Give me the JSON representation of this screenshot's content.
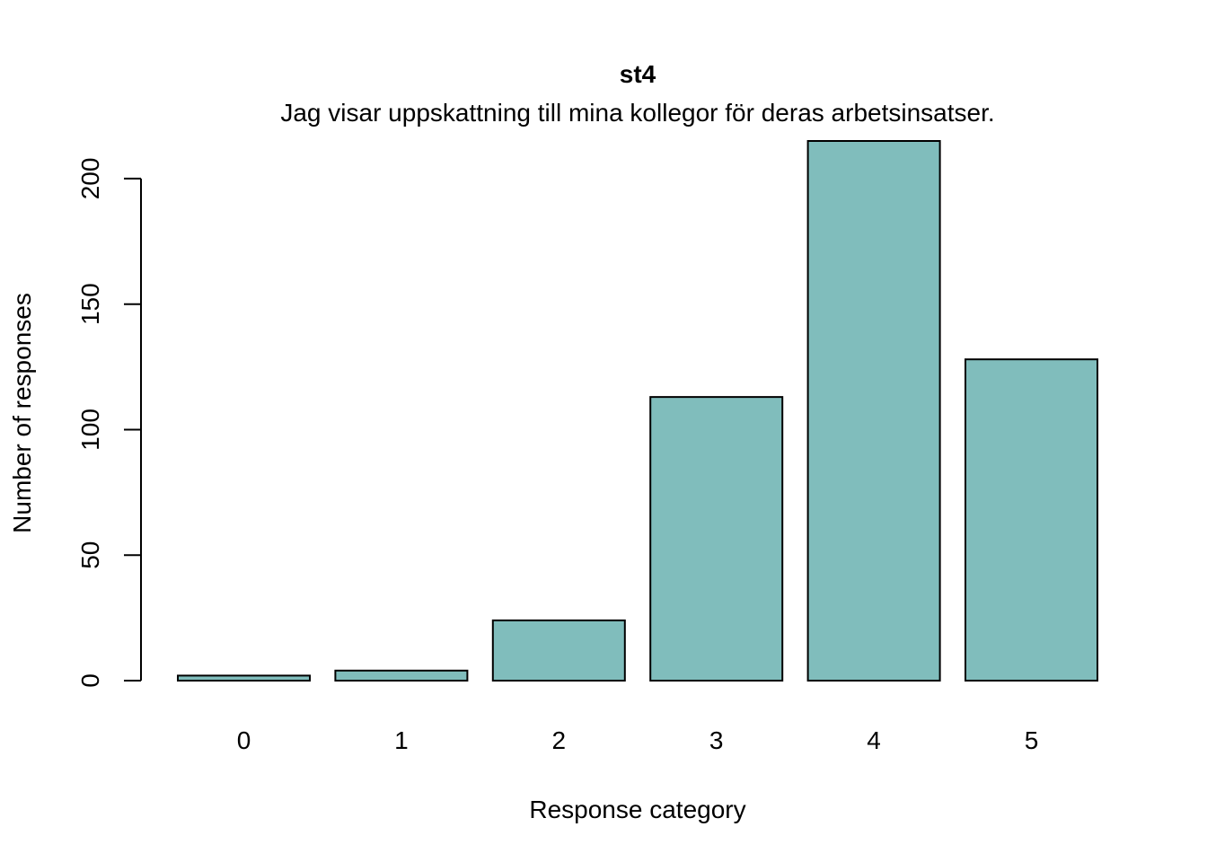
{
  "chart_data": {
    "type": "bar",
    "title": "st4",
    "subtitle": "Jag visar uppskattning till mina kollegor för deras arbetsinsatser.",
    "xlabel": "Response category",
    "ylabel": "Number of responses",
    "categories": [
      "0",
      "1",
      "2",
      "3",
      "4",
      "5"
    ],
    "values": [
      2,
      4,
      24,
      113,
      215,
      128
    ],
    "ylim": [
      0,
      215
    ],
    "yticks": [
      0,
      50,
      100,
      150,
      200
    ],
    "bar_color": "#80BDBC",
    "grid": false,
    "legend": "none"
  }
}
